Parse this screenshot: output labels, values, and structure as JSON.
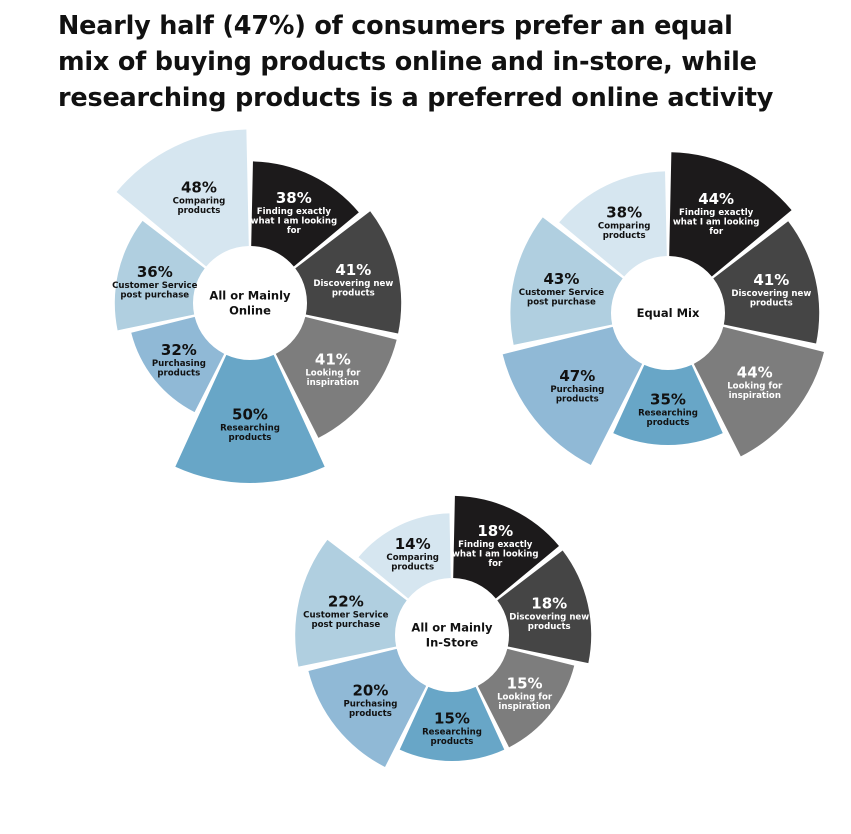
{
  "title_lines": [
    "Nearly half (47%) of consumers prefer an equal",
    "mix of buying products online and in-store, while",
    "researching products is a preferred online activity"
  ],
  "colors": {
    "finding": "#1c1a1b",
    "discovering": "#454545",
    "inspiration": "#7d7d7d",
    "researching": "#68a6c7",
    "purchasing": "#90b9d6",
    "customer_service": "#b0cfe0",
    "comparing": "#d6e6f0"
  },
  "chart_data": [
    {
      "type": "pie",
      "center_label": [
        "All or Mainly",
        "Online"
      ],
      "slices": [
        {
          "category": "finding",
          "value": 38,
          "label": "38%",
          "text": [
            "Finding exactly",
            "what I am looking",
            "for"
          ]
        },
        {
          "category": "discovering",
          "value": 41,
          "label": "41%",
          "text": [
            "Discovering new",
            "products"
          ]
        },
        {
          "category": "inspiration",
          "value": 41,
          "label": "41%",
          "text": [
            "Looking for",
            "inspiration"
          ]
        },
        {
          "category": "researching",
          "value": 50,
          "label": "50%",
          "text": [
            "Researching",
            "products"
          ]
        },
        {
          "category": "purchasing",
          "value": 32,
          "label": "32%",
          "text": [
            "Purchasing",
            "products"
          ]
        },
        {
          "category": "customer_service",
          "value": 36,
          "label": "36%",
          "text": [
            "Customer Service",
            "post purchase"
          ]
        },
        {
          "category": "comparing",
          "value": 48,
          "label": "48%",
          "text": [
            "Comparing",
            "products"
          ]
        }
      ]
    },
    {
      "type": "pie",
      "center_label": [
        "Equal Mix"
      ],
      "slices": [
        {
          "category": "finding",
          "value": 44,
          "label": "44%",
          "text": [
            "Finding exactly",
            "what I am looking",
            "for"
          ]
        },
        {
          "category": "discovering",
          "value": 41,
          "label": "41%",
          "text": [
            "Discovering new",
            "products"
          ]
        },
        {
          "category": "inspiration",
          "value": 44,
          "label": "44%",
          "text": [
            "Looking for",
            "inspiration"
          ]
        },
        {
          "category": "researching",
          "value": 35,
          "label": "35%",
          "text": [
            "Researching",
            "products"
          ]
        },
        {
          "category": "purchasing",
          "value": 47,
          "label": "47%",
          "text": [
            "Purchasing",
            "products"
          ]
        },
        {
          "category": "customer_service",
          "value": 43,
          "label": "43%",
          "text": [
            "Customer Service",
            "post purchase"
          ]
        },
        {
          "category": "comparing",
          "value": 38,
          "label": "38%",
          "text": [
            "Comparing",
            "products"
          ]
        }
      ]
    },
    {
      "type": "pie",
      "center_label": [
        "All or Mainly",
        "In-Store"
      ],
      "slices": [
        {
          "category": "finding",
          "value": 18,
          "label": "18%",
          "text": [
            "Finding exactly",
            "what I am looking",
            "for"
          ]
        },
        {
          "category": "discovering",
          "value": 18,
          "label": "18%",
          "text": [
            "Discovering new",
            "products"
          ]
        },
        {
          "category": "inspiration",
          "value": 15,
          "label": "15%",
          "text": [
            "Looking for",
            "inspiration"
          ]
        },
        {
          "category": "researching",
          "value": 15,
          "label": "15%",
          "text": [
            "Researching",
            "products"
          ]
        },
        {
          "category": "purchasing",
          "value": 20,
          "label": "20%",
          "text": [
            "Purchasing",
            "products"
          ]
        },
        {
          "category": "customer_service",
          "value": 22,
          "label": "22%",
          "text": [
            "Customer Service",
            "post purchase"
          ]
        },
        {
          "category": "comparing",
          "value": 14,
          "label": "14%",
          "text": [
            "Comparing",
            "products"
          ]
        }
      ]
    }
  ]
}
